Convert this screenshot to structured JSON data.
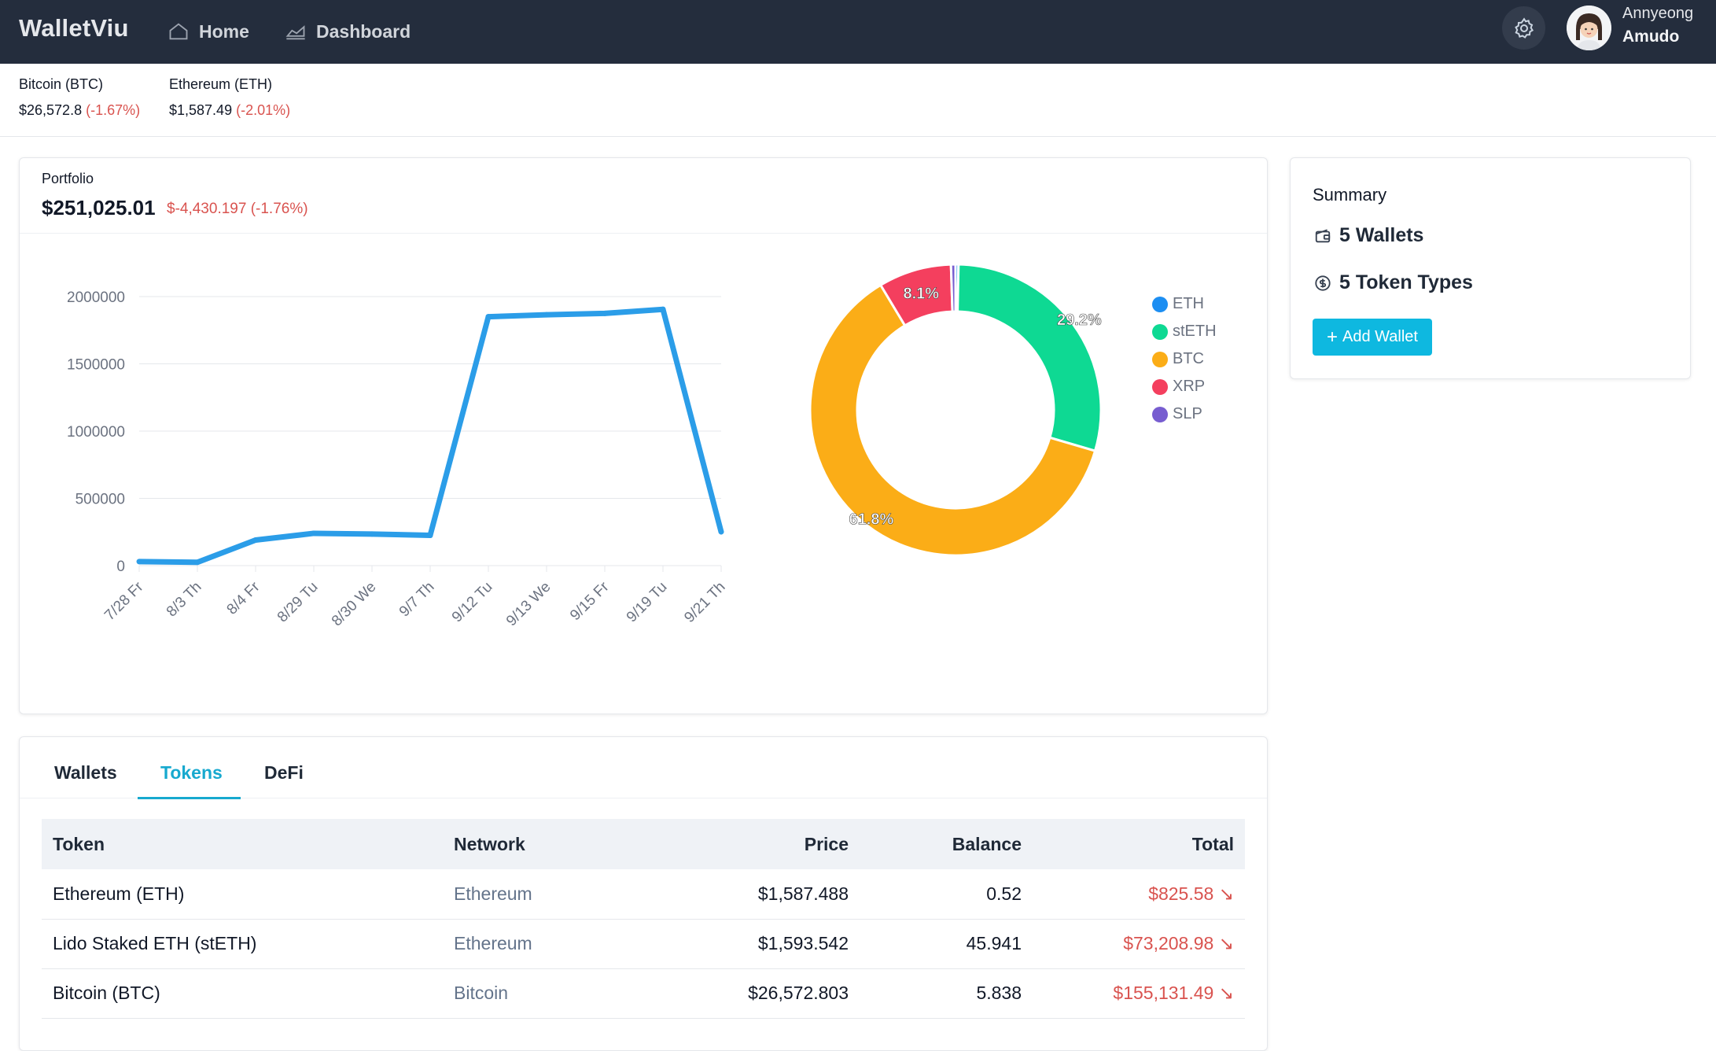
{
  "nav": {
    "brand": "WalletViu",
    "home_label": "Home",
    "dashboard_label": "Dashboard",
    "user_first": "Annyeong",
    "user_last": "Amudo"
  },
  "ticker": [
    {
      "name": "Bitcoin (BTC)",
      "price": "$26,572.8",
      "change": "(-1.67%)"
    },
    {
      "name": "Ethereum (ETH)",
      "price": "$1,587.49",
      "change": "(-2.01%)"
    }
  ],
  "portfolio": {
    "label": "Portfolio",
    "value": "$251,025.01",
    "change": "$-4,430.197 (-1.76%)"
  },
  "chart_data": [
    {
      "type": "line",
      "x": [
        "7/28 Fr",
        "8/3 Th",
        "8/4 Fr",
        "8/29 Tu",
        "8/30 We",
        "9/7 Th",
        "9/12 Tu",
        "9/13 We",
        "9/15 Fr",
        "9/19 Tu",
        "9/21 Th"
      ],
      "series": [
        {
          "values": [
            30000,
            25000,
            190000,
            240000,
            235000,
            225000,
            1850000,
            1865000,
            1875000,
            1905000,
            251025
          ]
        }
      ],
      "ylim": [
        0,
        2000000
      ],
      "yticks": [
        "0",
        "500000",
        "1000000",
        "1500000",
        "2000000"
      ],
      "grid": true,
      "color": "#2b9de8"
    },
    {
      "type": "pie",
      "donut": true,
      "labels": [
        "ETH",
        "stETH",
        "BTC",
        "XRP",
        "SLP"
      ],
      "values": [
        0.33,
        29.2,
        61.8,
        8.1,
        0.5
      ],
      "slice_labels": [
        "",
        "29.2%",
        "61.8%",
        "8.1%",
        ""
      ],
      "colors": [
        "#1c8ef2",
        "#0ed993",
        "#fbad17",
        "#f43f5e",
        "#775dd0"
      ],
      "legend": "right"
    }
  ],
  "summary": {
    "title": "Summary",
    "wallets": "5 Wallets",
    "token_types": "5 Token Types",
    "add_wallet": "Add Wallet"
  },
  "tabs": {
    "wallets": "Wallets",
    "tokens": "Tokens",
    "defi": "DeFi"
  },
  "table": {
    "headers": {
      "token": "Token",
      "network": "Network",
      "price": "Price",
      "balance": "Balance",
      "total": "Total"
    },
    "rows": [
      {
        "token": "Ethereum (ETH)",
        "network": "Ethereum",
        "price": "$1,587.488",
        "balance": "0.52",
        "total": "$825.58"
      },
      {
        "token": "Lido Staked ETH (stETH)",
        "network": "Ethereum",
        "price": "$1,593.542",
        "balance": "45.941",
        "total": "$73,208.98"
      },
      {
        "token": "Bitcoin (BTC)",
        "network": "Bitcoin",
        "price": "$26,572.803",
        "balance": "5.838",
        "total": "$155,131.49"
      }
    ]
  },
  "icons": {
    "home": "home-icon",
    "dashboard": "area-chart-icon",
    "settings": "gear-icon",
    "wallet": "wallet-icon",
    "token": "dollar-coin-icon",
    "trend": "trending-down-icon"
  },
  "colors": {
    "accent": "#17a9cf",
    "negative": "#d9534f",
    "nav_bg": "#242d3d"
  }
}
